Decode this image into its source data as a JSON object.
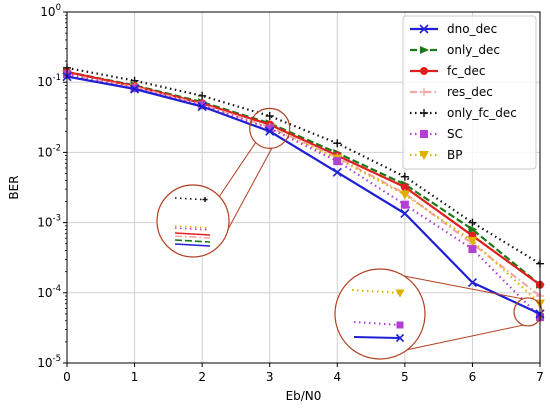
{
  "chart_data": {
    "type": "line",
    "xlabel": "Eb/N0",
    "ylabel": "BER",
    "x": [
      0,
      1,
      2,
      3,
      4,
      5,
      6,
      7
    ],
    "xlim": [
      0,
      7
    ],
    "ylim": [
      1e-05,
      1
    ],
    "yscale": "log",
    "grid": true,
    "legend_position": "top-right",
    "x_tick_labels": [
      "0",
      "1",
      "2",
      "3",
      "4",
      "5",
      "6",
      "7"
    ],
    "y_ticks": [
      {
        "value": 1e-05,
        "base": "10",
        "exp": "-5"
      },
      {
        "value": 0.0001,
        "base": "10",
        "exp": "-4"
      },
      {
        "value": 0.001,
        "base": "10",
        "exp": "-3"
      },
      {
        "value": 0.01,
        "base": "10",
        "exp": "-2"
      },
      {
        "value": 0.1,
        "base": "10",
        "exp": "-1"
      },
      {
        "value": 1,
        "base": "10",
        "exp": "0"
      }
    ],
    "series": [
      {
        "name": "dno_dec",
        "color": "#1f1fd6",
        "dash": "solid",
        "marker": "x",
        "values": [
          0.12,
          0.08,
          0.045,
          0.02,
          0.0052,
          0.00135,
          0.00014,
          5e-05
        ]
      },
      {
        "name": "only_dec",
        "color": "#1a7a1a",
        "dash": "dashed",
        "marker": "triangle-right",
        "values": [
          0.14,
          0.09,
          0.052,
          0.026,
          0.0098,
          0.0035,
          0.0008,
          0.00013
        ]
      },
      {
        "name": "fc_dec",
        "color": "#e0201e",
        "dash": "solid",
        "marker": "circle",
        "values": [
          0.14,
          0.088,
          0.05,
          0.025,
          0.009,
          0.0032,
          0.00065,
          0.00013
        ]
      },
      {
        "name": "res_dec",
        "color": "#f2a8a8",
        "dash": "dashdot",
        "marker": "plus",
        "values": [
          0.13,
          0.085,
          0.048,
          0.023,
          0.0085,
          0.0026,
          0.0005,
          9e-05
        ]
      },
      {
        "name": "only_fc_dec",
        "color": "#111111",
        "dash": "dotted",
        "marker": "plus",
        "values": [
          0.16,
          0.105,
          0.064,
          0.033,
          0.0135,
          0.0045,
          0.001,
          0.00026
        ]
      },
      {
        "name": "SC",
        "color": "#b040d0",
        "dash": "dotted",
        "marker": "square",
        "values": [
          0.13,
          0.082,
          0.047,
          0.022,
          0.0075,
          0.0018,
          0.00042,
          4.5e-05
        ]
      },
      {
        "name": "BP",
        "color": "#e0b000",
        "dash": "dotted",
        "marker": "triangle-down",
        "values": [
          0.13,
          0.083,
          0.047,
          0.022,
          0.0082,
          0.0025,
          0.00055,
          7e-05
        ]
      }
    ],
    "callout_color": "#b04020"
  }
}
